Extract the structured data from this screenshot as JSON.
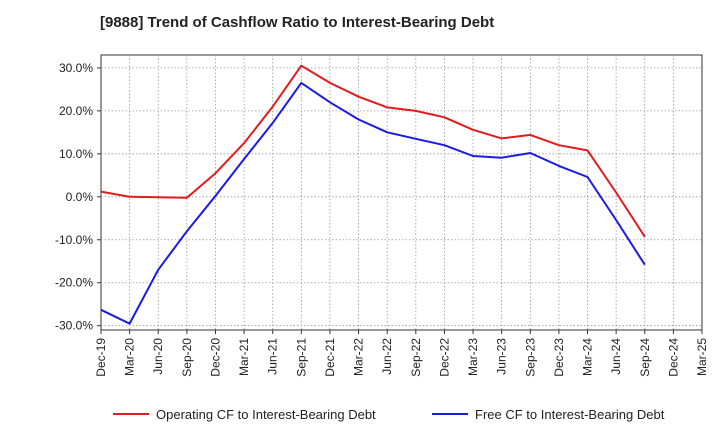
{
  "chart_data": {
    "type": "line",
    "title": "[9888]  Trend of Cashflow Ratio to Interest-Bearing Debt",
    "xlabel": "",
    "ylabel": "",
    "ylim": [
      -31,
      33
    ],
    "y_ticks": [
      30,
      20,
      10,
      0,
      -10,
      -20,
      -30
    ],
    "y_tick_labels": [
      "30.0%",
      "20.0%",
      "10.0%",
      "0.0%",
      "-10.0%",
      "-20.0%",
      "-30.0%"
    ],
    "categories": [
      "Dec-19",
      "Mar-20",
      "Jun-20",
      "Sep-20",
      "Dec-20",
      "Mar-21",
      "Jun-21",
      "Sep-21",
      "Dec-21",
      "Mar-22",
      "Jun-22",
      "Sep-22",
      "Dec-22",
      "Mar-23",
      "Jun-23",
      "Sep-23",
      "Dec-23",
      "Mar-24",
      "Jun-24",
      "Sep-24",
      "Dec-24",
      "Mar-25"
    ],
    "grid": true,
    "legend_position": "bottom",
    "series": [
      {
        "name": "Operating CF to Interest-Bearing Debt",
        "color": "#e41a1c",
        "values": [
          1.2,
          0.0,
          -0.1,
          -0.2,
          5.5,
          12.5,
          21.0,
          30.5,
          26.5,
          23.3,
          20.8,
          20.0,
          18.5,
          15.6,
          13.6,
          14.4,
          12.0,
          10.8,
          1.0,
          -9.3,
          null,
          null
        ]
      },
      {
        "name": "Free CF to Interest-Bearing Debt",
        "color": "#1a1ae6",
        "values": [
          -26.3,
          -29.5,
          -17.0,
          -8.0,
          0.2,
          8.8,
          17.2,
          26.5,
          22.0,
          18.0,
          15.0,
          13.5,
          12.0,
          9.5,
          9.1,
          10.2,
          7.2,
          4.6,
          -5.4,
          -15.8,
          null,
          null
        ]
      }
    ]
  }
}
